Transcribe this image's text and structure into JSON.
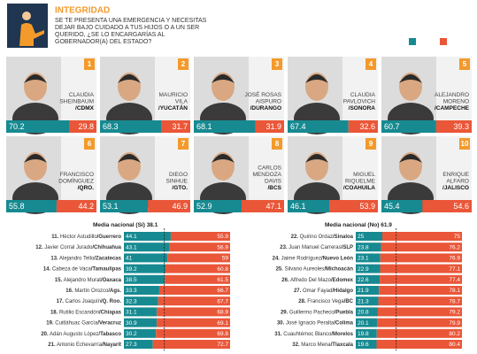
{
  "header": {
    "title": "INTEGRIDAD",
    "question": [
      "SE TE PRESENTA UNA EMERGENCIA Y NECESITAS",
      "DEJAR BAJO CUIDADO A TUS HIJOS O A UN SER",
      "QUERIDO, ¿SE LO ENCARGARÍAS AL",
      "GOBERNADOR(A) DEL ESTADO?"
    ]
  },
  "colors": {
    "yes": "#178a91",
    "no": "#ea5638",
    "badge": "#f39a2b"
  },
  "top10": [
    {
      "rank": "1",
      "name": [
        "CLAUDIA",
        "SHEINBAUM"
      ],
      "state": "/CDMX",
      "yes": 70.2,
      "no": 29.8
    },
    {
      "rank": "2",
      "name": [
        "MAURICIO",
        "VILA"
      ],
      "state": "/YUCATÁN",
      "yes": 68.3,
      "no": 31.7
    },
    {
      "rank": "3",
      "name": [
        "JOSÉ ROSAS",
        "AISPURO"
      ],
      "state": "/DURANGO",
      "yes": 68.1,
      "no": 31.9
    },
    {
      "rank": "4",
      "name": [
        "CLAUDIA",
        "PAVLOVICH"
      ],
      "state": "/SONORA",
      "yes": 67.4,
      "no": 32.6
    },
    {
      "rank": "5",
      "name": [
        "ALEJANDRO",
        "MORENO"
      ],
      "state": "/CAMPECHE",
      "yes": 60.7,
      "no": 39.3
    },
    {
      "rank": "6",
      "name": [
        "FRANCISCO",
        "DOMÍNGUEZ"
      ],
      "state": "/QRO.",
      "yes": 55.8,
      "no": 44.2
    },
    {
      "rank": "7",
      "name": [
        "DIEGO",
        "SINHUE"
      ],
      "state": "/GTO.",
      "yes": 53.1,
      "no": 46.9
    },
    {
      "rank": "8",
      "name": [
        "CARLOS",
        "MENDOZA",
        "DAVIS"
      ],
      "state": "/BCS",
      "yes": 52.9,
      "no": 47.1
    },
    {
      "rank": "9",
      "name": [
        "MIGUEL",
        "RIQUELME"
      ],
      "state": "/COAHUILA",
      "yes": 46.1,
      "no": 53.9
    },
    {
      "rank": "10",
      "name": [
        "ENRIQUE",
        "ALFARO"
      ],
      "state": "/JALISCO",
      "yes": 45.4,
      "no": 54.6
    }
  ],
  "lists": [
    {
      "label": "Media nacional (Sí)",
      "mean": 38.1,
      "side": "yes",
      "rows": [
        {
          "rank": "11.",
          "name": "Héctor Astudillo",
          "state": "/Guerrero",
          "yes": 44.1,
          "no": 55.9
        },
        {
          "rank": "12.",
          "name": "Javier Corral Jurado",
          "state": "/Chihuahua",
          "yes": 43.1,
          "no": 56.9
        },
        {
          "rank": "13.",
          "name": "Alejandro Tello",
          "state": "/Zacatecas",
          "yes": 41,
          "no": 59
        },
        {
          "rank": "14.",
          "name": "Cabeza de Vaca",
          "state": "/Tamaulipas",
          "yes": 39.2,
          "no": 60.8
        },
        {
          "rank": "15.",
          "name": "Alejandro Murat",
          "state": "/Oaxaca",
          "yes": 38.5,
          "no": 61.5
        },
        {
          "rank": "16.",
          "name": "Martín Orozco",
          "state": "/Ags.",
          "yes": 33.3,
          "no": 66.7
        },
        {
          "rank": "17.",
          "name": "Carlos Joaquín",
          "state": "/Q. Roo.",
          "yes": 32.3,
          "no": 67.7
        },
        {
          "rank": "18.",
          "name": "Rutilio Escandón",
          "state": "/Chiapas",
          "yes": 31.1,
          "no": 68.9
        },
        {
          "rank": "19.",
          "name": "Cuitláhuac García",
          "state": "/Veracruz",
          "yes": 30.9,
          "no": 69.1
        },
        {
          "rank": "20.",
          "name": "Adán Augusto López",
          "state": "/Tabasco",
          "yes": 30.2,
          "no": 69.8
        },
        {
          "rank": "21.",
          "name": "Antonio Echevarría",
          "state": "/Nayarit",
          "yes": 27.3,
          "no": 72.7
        }
      ]
    },
    {
      "label": "Media nacional (No)",
      "mean": 61.9,
      "side": "no",
      "rows": [
        {
          "rank": "22.",
          "name": "Quirino Ordaz",
          "state": "/Sinaloa",
          "yes": 25,
          "no": 75
        },
        {
          "rank": "23.",
          "name": "Juan Manuel Carreras",
          "state": "/SLP",
          "yes": 23.8,
          "no": 76.2
        },
        {
          "rank": "24.",
          "name": "Jaime Rodríguez",
          "state": "/Nuevo León",
          "yes": 23.1,
          "no": 76.9
        },
        {
          "rank": "25.",
          "name": "Silvano Aureoles",
          "state": "/Michoacán",
          "yes": 22.9,
          "no": 77.1
        },
        {
          "rank": "26.",
          "name": "Alfredo Del Mazo",
          "state": "/Edomex",
          "yes": 22.6,
          "no": 77.4
        },
        {
          "rank": "27.",
          "name": "Omar Fayad",
          "state": "/Hidalgo",
          "yes": 21.9,
          "no": 78.1
        },
        {
          "rank": "28.",
          "name": "Francisco Vega",
          "state": "/BC",
          "yes": 21.3,
          "no": 78.7
        },
        {
          "rank": "29.",
          "name": "Guillermo Pacheco",
          "state": "/Puebla",
          "yes": 20.8,
          "no": 79.2
        },
        {
          "rank": "30.",
          "name": "José Ignacio Peralta",
          "state": "/Colima",
          "yes": 20.1,
          "no": 79.9
        },
        {
          "rank": "31.",
          "name": "Cuauhtémoc Blanco",
          "state": "/Morelos",
          "yes": 19.8,
          "no": 80.2
        },
        {
          "rank": "32.",
          "name": "Marco Mena",
          "state": "/Tlaxcala",
          "yes": 19.6,
          "no": 80.4
        }
      ]
    }
  ]
}
